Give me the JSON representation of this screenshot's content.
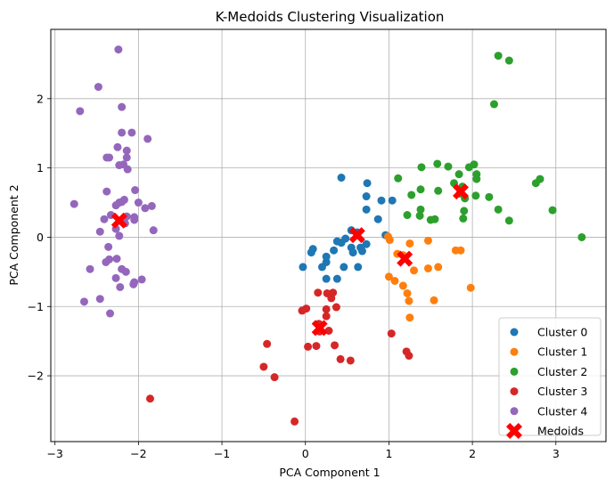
{
  "chart_data": {
    "type": "scatter",
    "title": "K-Medoids Clustering Visualization",
    "xlabel": "PCA Component 1",
    "ylabel": "PCA Component 2",
    "xlim": [
      -3.05,
      3.6
    ],
    "ylim": [
      -2.95,
      3.0
    ],
    "xticks": [
      -3,
      -2,
      -1,
      0,
      1,
      2,
      3
    ],
    "yticks": [
      -2,
      -1,
      0,
      1,
      2
    ],
    "grid": true,
    "legend_position": "lower-right",
    "series": [
      {
        "name": "Cluster 0",
        "color": "#1f77b4",
        "points": [
          [
            0.43,
            0.86
          ],
          [
            0.74,
            0.78
          ],
          [
            0.73,
            0.59
          ],
          [
            0.91,
            0.53
          ],
          [
            1.04,
            0.53
          ],
          [
            0.73,
            0.4
          ],
          [
            0.87,
            0.26
          ],
          [
            0.55,
            0.1
          ],
          [
            0.62,
            0.07
          ],
          [
            0.48,
            -0.02
          ],
          [
            0.38,
            -0.06
          ],
          [
            0.43,
            -0.08
          ],
          [
            0.55,
            -0.15
          ],
          [
            0.66,
            -0.15
          ],
          [
            0.73,
            -0.1
          ],
          [
            0.68,
            -0.2
          ],
          [
            0.57,
            -0.22
          ],
          [
            0.09,
            -0.17
          ],
          [
            0.07,
            -0.22
          ],
          [
            0.25,
            -0.28
          ],
          [
            0.34,
            -0.19
          ],
          [
            0.25,
            -0.36
          ],
          [
            0.2,
            -0.43
          ],
          [
            -0.03,
            -0.43
          ],
          [
            0.46,
            -0.43
          ],
          [
            0.63,
            -0.43
          ],
          [
            0.38,
            -0.6
          ],
          [
            0.25,
            -0.6
          ],
          [
            0.96,
            0.03
          ]
        ]
      },
      {
        "name": "Cluster 1",
        "color": "#ff7f0e",
        "points": [
          [
            0.99,
            0.01
          ],
          [
            1.01,
            -0.04
          ],
          [
            1.47,
            -0.05
          ],
          [
            1.25,
            -0.09
          ],
          [
            1.1,
            -0.24
          ],
          [
            1.17,
            -0.26
          ],
          [
            1.8,
            -0.19
          ],
          [
            1.86,
            -0.19
          ],
          [
            1.3,
            -0.48
          ],
          [
            1.47,
            -0.45
          ],
          [
            1.59,
            -0.43
          ],
          [
            1.0,
            -0.57
          ],
          [
            1.07,
            -0.63
          ],
          [
            1.17,
            -0.7
          ],
          [
            1.22,
            -0.81
          ],
          [
            1.24,
            -0.92
          ],
          [
            1.54,
            -0.91
          ],
          [
            1.25,
            -1.16
          ],
          [
            1.98,
            -0.73
          ]
        ]
      },
      {
        "name": "Cluster 2",
        "color": "#2ca02c",
        "points": [
          [
            2.31,
            2.62
          ],
          [
            2.44,
            2.55
          ],
          [
            2.26,
            1.92
          ],
          [
            1.58,
            1.06
          ],
          [
            1.71,
            1.02
          ],
          [
            1.39,
            1.01
          ],
          [
            1.96,
            1.01
          ],
          [
            2.02,
            1.05
          ],
          [
            1.84,
            0.91
          ],
          [
            2.05,
            0.91
          ],
          [
            2.05,
            0.84
          ],
          [
            1.11,
            0.85
          ],
          [
            1.78,
            0.78
          ],
          [
            2.81,
            0.84
          ],
          [
            2.76,
            0.78
          ],
          [
            1.88,
            0.73
          ],
          [
            1.38,
            0.69
          ],
          [
            1.59,
            0.67
          ],
          [
            1.85,
            0.63
          ],
          [
            2.2,
            0.58
          ],
          [
            2.04,
            0.6
          ],
          [
            1.91,
            0.56
          ],
          [
            1.27,
            0.61
          ],
          [
            1.38,
            0.4
          ],
          [
            1.37,
            0.31
          ],
          [
            1.22,
            0.32
          ],
          [
            1.5,
            0.25
          ],
          [
            1.55,
            0.26
          ],
          [
            1.9,
            0.38
          ],
          [
            1.89,
            0.27
          ],
          [
            2.31,
            0.4
          ],
          [
            2.44,
            0.24
          ],
          [
            2.96,
            0.39
          ],
          [
            3.31,
            0.0
          ]
        ]
      },
      {
        "name": "Cluster 3",
        "color": "#d62728",
        "points": [
          [
            0.33,
            -0.8
          ],
          [
            0.26,
            -0.81
          ],
          [
            0.15,
            -0.8
          ],
          [
            0.31,
            -0.88
          ],
          [
            0.37,
            -1.01
          ],
          [
            0.25,
            -1.04
          ],
          [
            0.01,
            -1.03
          ],
          [
            -0.04,
            -1.06
          ],
          [
            0.25,
            -1.14
          ],
          [
            0.16,
            -1.25
          ],
          [
            0.28,
            -1.35
          ],
          [
            0.17,
            -1.36
          ],
          [
            0.03,
            -1.58
          ],
          [
            0.13,
            -1.57
          ],
          [
            0.35,
            -1.56
          ],
          [
            0.42,
            -1.76
          ],
          [
            0.54,
            -1.78
          ],
          [
            -0.46,
            -1.54
          ],
          [
            -0.5,
            -1.87
          ],
          [
            -0.37,
            -2.02
          ],
          [
            -0.13,
            -2.66
          ],
          [
            1.03,
            -1.39
          ],
          [
            1.21,
            -1.65
          ],
          [
            1.24,
            -1.71
          ],
          [
            -1.86,
            -2.33
          ]
        ]
      },
      {
        "name": "Cluster 4",
        "color": "#9467bd",
        "points": [
          [
            -2.24,
            2.71
          ],
          [
            -2.48,
            2.17
          ],
          [
            -2.7,
            1.82
          ],
          [
            -2.2,
            1.88
          ],
          [
            -2.2,
            1.51
          ],
          [
            -2.08,
            1.51
          ],
          [
            -1.89,
            1.42
          ],
          [
            -2.25,
            1.3
          ],
          [
            -2.14,
            1.25
          ],
          [
            -2.35,
            1.15
          ],
          [
            -2.38,
            1.15
          ],
          [
            -2.14,
            1.15
          ],
          [
            -2.18,
            1.05
          ],
          [
            -2.23,
            1.04
          ],
          [
            -2.13,
            0.98
          ],
          [
            -2.04,
            0.68
          ],
          [
            -2.38,
            0.66
          ],
          [
            -2.2,
            0.51
          ],
          [
            -2.17,
            0.54
          ],
          [
            -2.23,
            0.5
          ],
          [
            -2.27,
            0.46
          ],
          [
            -2.0,
            0.5
          ],
          [
            -1.92,
            0.42
          ],
          [
            -1.84,
            0.45
          ],
          [
            -2.77,
            0.48
          ],
          [
            -2.33,
            0.32
          ],
          [
            -2.41,
            0.26
          ],
          [
            -2.05,
            0.29
          ],
          [
            -2.14,
            0.3
          ],
          [
            -2.05,
            0.25
          ],
          [
            -2.16,
            0.2
          ],
          [
            -2.27,
            0.12
          ],
          [
            -2.46,
            0.08
          ],
          [
            -1.82,
            0.1
          ],
          [
            -2.23,
            0.02
          ],
          [
            -2.36,
            -0.14
          ],
          [
            -2.26,
            -0.31
          ],
          [
            -2.35,
            -0.32
          ],
          [
            -2.39,
            -0.36
          ],
          [
            -2.58,
            -0.46
          ],
          [
            -2.2,
            -0.46
          ],
          [
            -2.15,
            -0.5
          ],
          [
            -2.27,
            -0.59
          ],
          [
            -1.96,
            -0.61
          ],
          [
            -2.05,
            -0.65
          ],
          [
            -2.06,
            -0.68
          ],
          [
            -2.22,
            -0.72
          ],
          [
            -2.46,
            -0.89
          ],
          [
            -2.65,
            -0.93
          ],
          [
            -2.34,
            -1.1
          ]
        ]
      },
      {
        "name": "Medoids",
        "color": "#ff0000",
        "marker": "X",
        "points": [
          [
            -2.23,
            0.24
          ],
          [
            0.62,
            0.03
          ],
          [
            1.86,
            0.66
          ],
          [
            0.17,
            -1.31
          ],
          [
            1.19,
            -0.31
          ]
        ]
      }
    ]
  }
}
